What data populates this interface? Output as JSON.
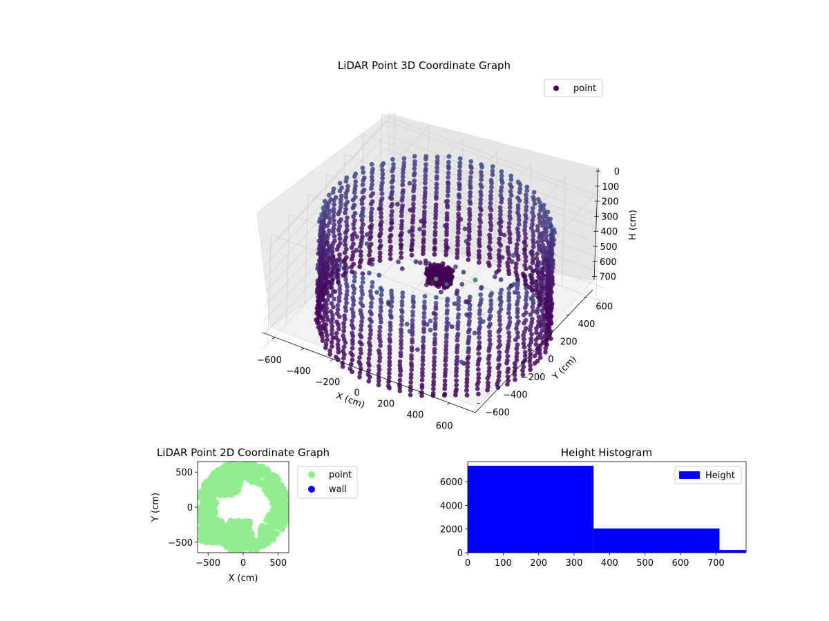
{
  "chart_data": [
    {
      "type": "scatter",
      "projection": "3d",
      "title": "LiDAR Point 3D Coordinate Graph",
      "xlabel": "X (cm)",
      "ylabel": "Y (cm)",
      "zlabel": "H (cm)",
      "xlim": [
        -650,
        650
      ],
      "ylim": [
        -650,
        650
      ],
      "zlim": [
        780,
        0
      ],
      "xticks": [
        "−600",
        "−400",
        "−200",
        "0",
        "200",
        "400",
        "600"
      ],
      "yticks": [
        "−600",
        "−400",
        "−200",
        "0",
        "200",
        "400",
        "600"
      ],
      "zticks": [
        "0",
        "100",
        "200",
        "300",
        "400",
        "500",
        "600",
        "700"
      ],
      "grid": true,
      "legend": "top-right",
      "colormap": "viridis",
      "series": [
        {
          "name": "point",
          "color": "#440154",
          "shape": "cylindrical wall ring of radius ~600 cm spanning heights ~0–700 cm, a dense cluster near the center at low height, and scattered interior points"
        }
      ]
    },
    {
      "type": "scatter",
      "title": "LiDAR Point 2D Coordinate Graph",
      "xlabel": "X (cm)",
      "ylabel": "Y (cm)",
      "xlim": [
        -650,
        650
      ],
      "ylim": [
        -650,
        650
      ],
      "xticks": [
        "−500",
        "0",
        "500"
      ],
      "yticks": [
        "−500",
        "0",
        "500"
      ],
      "legend": "right-outside",
      "series": [
        {
          "name": "point",
          "color": "#90ee90"
        },
        {
          "name": "wall",
          "color": "#0000ff"
        }
      ]
    },
    {
      "type": "bar",
      "subtype": "histogram",
      "title": "Height Histogram",
      "xlim": [
        0,
        785
      ],
      "ylim": [
        0,
        7700
      ],
      "xticks": [
        0,
        100,
        200,
        300,
        400,
        500,
        600,
        700
      ],
      "yticks": [
        0,
        2000,
        4000,
        6000
      ],
      "legend": "top-right",
      "series": [
        {
          "name": "Height",
          "color": "#0000ff",
          "bins": [
            {
              "x0": 0,
              "x1": 355,
              "count": 7350
            },
            {
              "x0": 355,
              "x1": 710,
              "count": 2050
            },
            {
              "x0": 710,
              "x1": 785,
              "count": 230
            }
          ]
        }
      ]
    }
  ]
}
